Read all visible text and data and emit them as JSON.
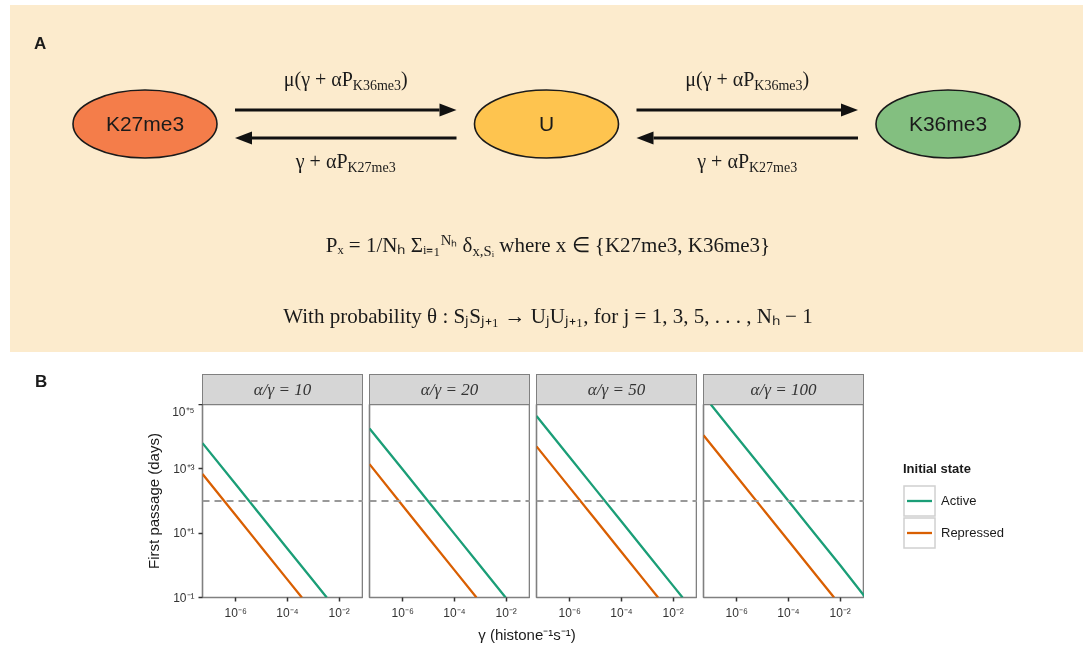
{
  "chart_data": [
    {
      "type": "other",
      "title": "A",
      "categories": [
        "K27me3",
        "U",
        "K36me3"
      ],
      "colors": [
        "#f47d4a",
        "#fec44f",
        "#83bf80"
      ],
      "annotations": [
        "μ(γ + αP$_{K36me3}$)",
        "γ + αP$_{K27me3}$",
        "μ(γ + αP$_{K36me3}$)",
        "γ + αP$_{K27me3}$",
        "Pₓ = 1/Nₕ Σᵢ₌₁$^{Nₕ}$ δ$_{x,Sᵢ}$ where x ∈ {K27me3, K36me3}",
        "With probability θ :  SⱼSⱼ₊₁ → UⱼUⱼ₊₁, for j = 1, 3, 5, . . . , Nₕ − 1"
      ]
    },
    {
      "type": "line",
      "title": "α/γ = 10",
      "annotations": [
        "B"
      ],
      "ylabel": "First passage (days)",
      "log": "xy",
      "xlim": [
        5.2e-08,
        0.087
      ],
      "ylim": [
        0.1,
        100000
      ],
      "xticks": [
        {
          "value": 1e-06,
          "label": "10⁻⁶"
        },
        {
          "value": 0.0001,
          "label": "10⁻⁴"
        },
        {
          "value": 0.01,
          "label": "10⁻²"
        }
      ],
      "yticks": [
        {
          "value": 0.1,
          "label": "10⁻¹"
        },
        {
          "value": 10,
          "label": "10⁺¹"
        },
        {
          "value": 1000,
          "label": "10⁺³"
        },
        {
          "value": 100000,
          "label": "10⁺⁵"
        }
      ],
      "ref_lines": [
        {
          "axis": "y",
          "value": 100,
          "color": "#999999",
          "line_style": "dashed"
        }
      ],
      "series": [
        {
          "color": "#1b9e77",
          "x": [
            5.2e-08,
            1e-06,
            1e-05,
            0.0001,
            0.001,
            0.0033
          ],
          "values": [
            6300,
            330,
            33,
            3.3,
            0.33,
            0.1
          ]
        },
        {
          "color": "#d95f02",
          "x": [
            5.2e-08,
            1e-06,
            1e-05,
            0.0001,
            0.00036
          ],
          "values": [
            690,
            36,
            3.6,
            0.36,
            0.1
          ]
        }
      ]
    },
    {
      "type": "line",
      "title": "α/γ = 20",
      "xlabel": "γ (histone⁻¹s⁻¹)",
      "tick_labels": "x",
      "log": "xy",
      "xlim": [
        5.2e-08,
        0.087
      ],
      "ylim": [
        0.1,
        100000
      ],
      "xticks": [
        {
          "value": 1e-06,
          "label": "10⁻⁶"
        },
        {
          "value": 0.0001,
          "label": "10⁻⁴"
        },
        {
          "value": 0.01,
          "label": "10⁻²"
        }
      ],
      "ref_lines": [
        {
          "axis": "y",
          "value": 100,
          "color": "#999999",
          "line_style": "dashed"
        }
      ],
      "series": [
        {
          "color": "#1b9e77",
          "x": [
            5.2e-08,
            1e-06,
            1e-05,
            0.0001,
            0.001,
            0.0095
          ],
          "values": [
            18000,
            950,
            95,
            9.5,
            0.95,
            0.1
          ]
        },
        {
          "color": "#d95f02",
          "x": [
            5.2e-08,
            1e-06,
            1e-05,
            0.0001,
            0.00071
          ],
          "values": [
            1400,
            71,
            7.1,
            0.71,
            0.1
          ]
        }
      ]
    },
    {
      "type": "line",
      "title": "α/γ = 50",
      "tick_labels": "x",
      "log": "xy",
      "xlim": [
        5.2e-08,
        0.087
      ],
      "ylim": [
        0.1,
        100000
      ],
      "xticks": [
        {
          "value": 1e-06,
          "label": "10⁻⁶"
        },
        {
          "value": 0.0001,
          "label": "10⁻⁴"
        },
        {
          "value": 0.01,
          "label": "10⁻²"
        }
      ],
      "ref_lines": [
        {
          "axis": "y",
          "value": 100,
          "color": "#999999",
          "line_style": "dashed"
        }
      ],
      "series": [
        {
          "color": "#1b9e77",
          "x": [
            5.2e-08,
            1e-06,
            1e-05,
            0.0001,
            0.001,
            0.01,
            0.023
          ],
          "values": [
            44000,
            2300,
            230,
            23,
            2.3,
            0.23,
            0.1
          ]
        },
        {
          "color": "#d95f02",
          "x": [
            5.2e-08,
            1e-06,
            1e-05,
            0.0001,
            0.001,
            0.0026
          ],
          "values": [
            5000,
            260,
            26,
            2.6,
            0.26,
            0.1
          ]
        }
      ]
    },
    {
      "type": "line",
      "title": "α/γ = 100",
      "tick_labels": "x",
      "legend": "right",
      "legend_title": "Initial state",
      "log": "xy",
      "xlim": [
        5.2e-08,
        0.087
      ],
      "ylim": [
        0.1,
        100000
      ],
      "xticks": [
        {
          "value": 1e-06,
          "label": "10⁻⁶"
        },
        {
          "value": 0.0001,
          "label": "10⁻⁴"
        },
        {
          "value": 0.01,
          "label": "10⁻²"
        }
      ],
      "ref_lines": [
        {
          "axis": "y",
          "value": 100,
          "color": "#999999",
          "line_style": "dashed"
        }
      ],
      "series": [
        {
          "name": "Active",
          "color": "#1b9e77",
          "x": [
            1e-07,
            1e-06,
            1e-05,
            0.0001,
            0.001,
            0.01,
            0.087
          ],
          "values": [
            100000,
            10000,
            1000,
            100,
            10,
            1,
            0.11
          ]
        },
        {
          "name": "Repressed",
          "color": "#d95f02",
          "x": [
            5.2e-08,
            1e-06,
            1e-05,
            0.0001,
            0.001,
            0.0058
          ],
          "values": [
            11000,
            580,
            58,
            5.8,
            0.58,
            0.1
          ]
        }
      ]
    }
  ]
}
